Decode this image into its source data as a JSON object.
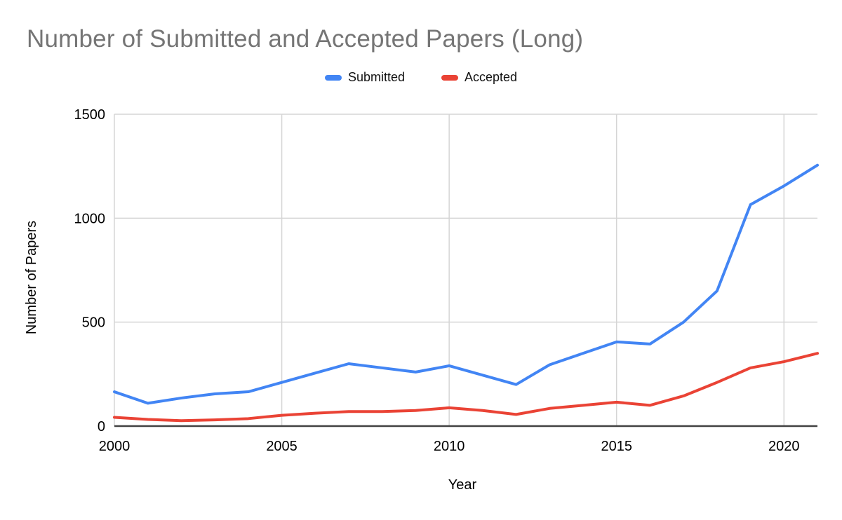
{
  "title": {
    "text": "Number of Submitted and Accepted Papers (Long)",
    "color": "#757575"
  },
  "legend": {
    "items": [
      {
        "label": "Submitted",
        "color": "#4285F4"
      },
      {
        "label": "Accepted",
        "color": "#EA4335"
      }
    ]
  },
  "chart_data": {
    "type": "line",
    "title": "Number of Submitted and Accepted Papers (Long)",
    "xlabel": "Year",
    "ylabel": "Number of Papers",
    "x": [
      2000,
      2001,
      2002,
      2003,
      2004,
      2005,
      2006,
      2007,
      2008,
      2009,
      2010,
      2011,
      2012,
      2013,
      2014,
      2015,
      2016,
      2017,
      2018,
      2019,
      2020,
      2021
    ],
    "series": [
      {
        "name": "Submitted",
        "color": "#4285F4",
        "values": [
          165,
          110,
          135,
          155,
          165,
          210,
          255,
          300,
          280,
          260,
          290,
          245,
          200,
          295,
          350,
          405,
          395,
          500,
          650,
          1065,
          1155,
          1255
        ]
      },
      {
        "name": "Accepted",
        "color": "#EA4335",
        "values": [
          42,
          32,
          26,
          30,
          36,
          52,
          62,
          70,
          70,
          75,
          88,
          75,
          56,
          85,
          100,
          115,
          100,
          145,
          210,
          280,
          310,
          350
        ]
      }
    ],
    "xlim": [
      2000,
      2021
    ],
    "ylim": [
      0,
      1500
    ],
    "xticks": [
      2000,
      2005,
      2010,
      2015,
      2020
    ],
    "yticks": [
      0,
      500,
      1000,
      1500
    ],
    "grid": true,
    "legend_position": "top",
    "styles": {
      "gridline_color": "#d5d5d5",
      "baseline_color": "#424242",
      "tick_label_color": "#000000",
      "line_width": 4
    }
  }
}
